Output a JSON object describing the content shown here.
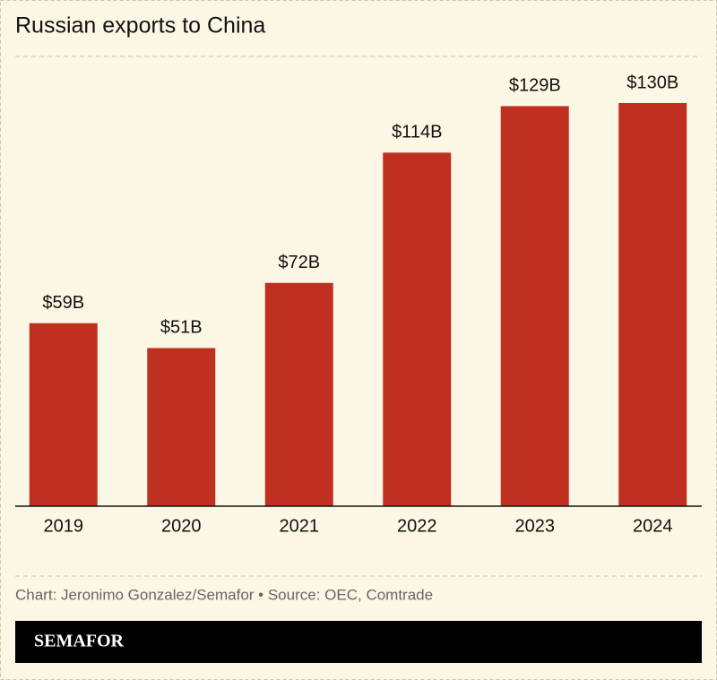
{
  "chart_data": {
    "type": "bar",
    "title": "Russian exports to China",
    "categories": [
      "2019",
      "2020",
      "2021",
      "2022",
      "2023",
      "2024"
    ],
    "values": [
      59,
      51,
      72,
      114,
      129,
      130
    ],
    "value_labels": [
      "$59B",
      "$51B",
      "$72B",
      "$114B",
      "$129B",
      "$130B"
    ],
    "color": "#bf3021"
  },
  "footer": {
    "credit": "Chart: Jeronimo Gonzalez/Semafor • Source: OEC, Comtrade",
    "brand": "SEMAFOR"
  }
}
